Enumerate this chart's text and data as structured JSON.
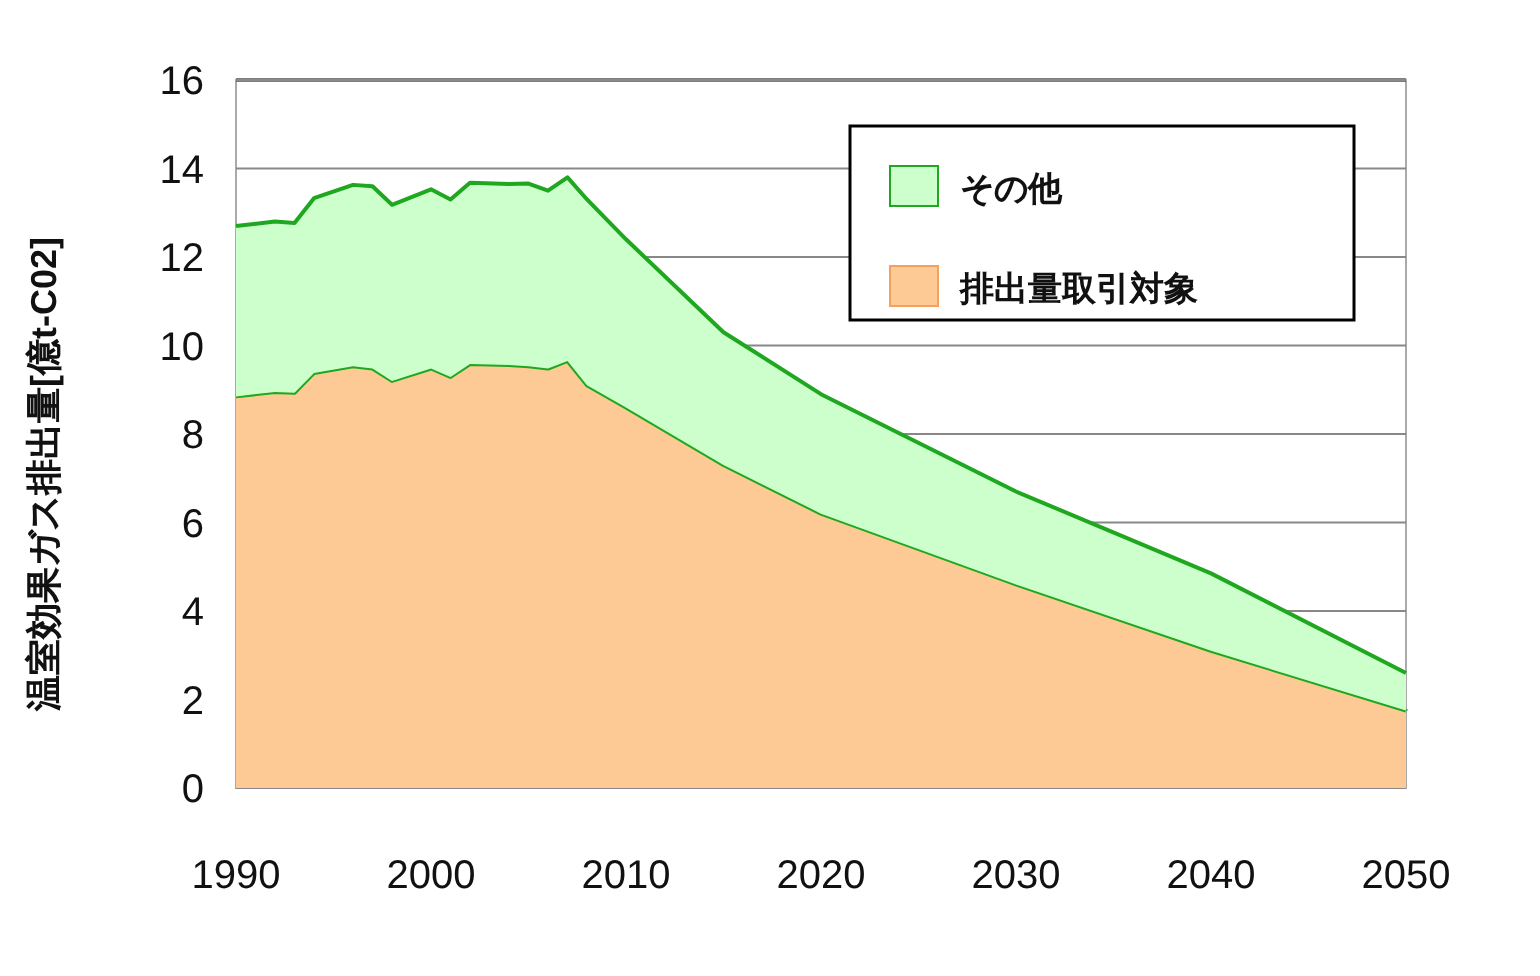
{
  "chart_data": {
    "type": "area",
    "stacked": true,
    "ylabel": "温室効果ガス排出量[億t-C02]",
    "x": [
      1990,
      1992,
      1993,
      1994,
      1996,
      1997,
      1998,
      2000,
      2001,
      2002,
      2004,
      2005,
      2006,
      2007,
      2008,
      2010,
      2015,
      2020,
      2030,
      2040,
      2050
    ],
    "series": [
      {
        "name": "排出量取引対象",
        "color": "#fdca96",
        "values": [
          8.85,
          8.95,
          8.93,
          9.38,
          9.53,
          9.48,
          9.2,
          9.48,
          9.29,
          9.58,
          9.56,
          9.53,
          9.48,
          9.65,
          9.1,
          8.6,
          7.3,
          6.2,
          4.6,
          3.1,
          1.75
        ]
      },
      {
        "name": "その他",
        "color": "#ccffcc",
        "values": [
          3.85,
          3.85,
          3.84,
          3.95,
          4.1,
          4.12,
          3.98,
          4.05,
          4.01,
          4.1,
          4.09,
          4.13,
          4.02,
          4.15,
          4.2,
          3.8,
          3.0,
          2.7,
          2.1,
          1.75,
          0.85
        ]
      }
    ],
    "xlim": [
      1990,
      2050
    ],
    "xticks": [
      1990,
      2000,
      2010,
      2020,
      2030,
      2040,
      2050
    ],
    "ylim": [
      0,
      16
    ],
    "yticks": [
      0,
      2,
      4,
      6,
      8,
      10,
      12,
      14,
      16
    ],
    "grid": "y",
    "legend": "top right"
  }
}
